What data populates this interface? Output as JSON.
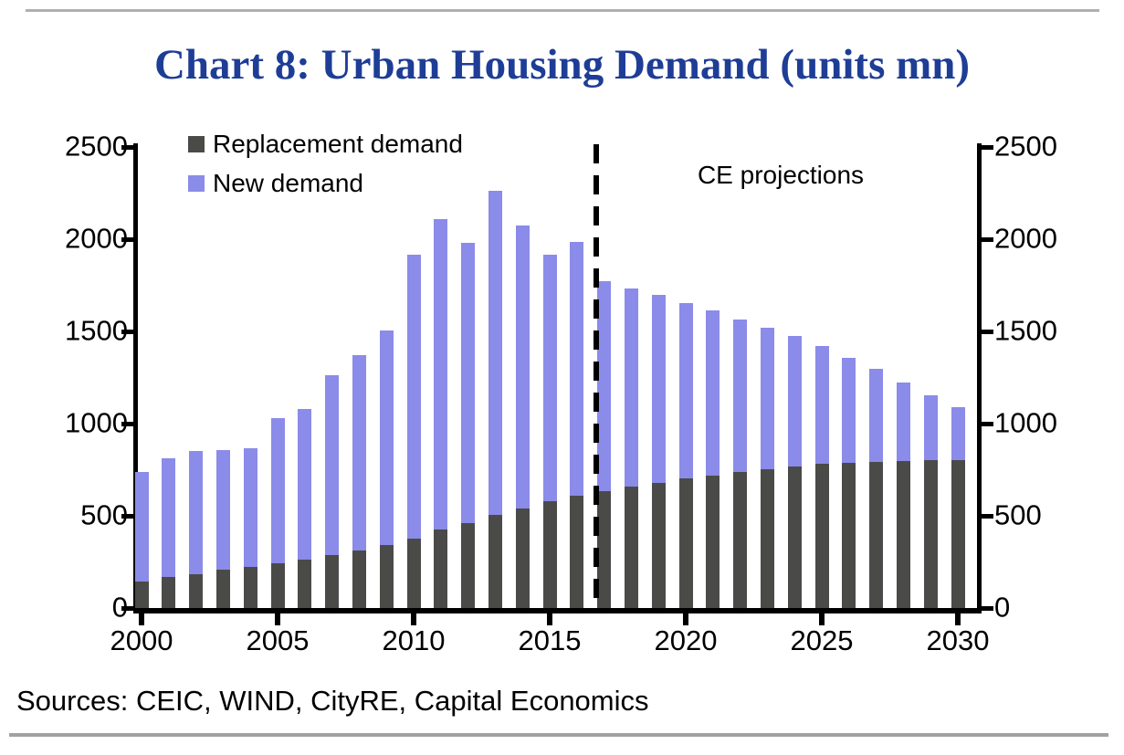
{
  "page": {
    "title": "Chart 8: Urban Housing Demand (units mn)",
    "title_color": "#1e3d96",
    "sources": "Sources: CEIC, WIND, CityRE, Capital Economics",
    "rule_color_top": "#b3afaf",
    "rule_color_bottom": "#a5a1a1"
  },
  "chart_data": {
    "type": "bar",
    "stacked": true,
    "title": "Chart 8: Urban Housing Demand (units mn)",
    "units": "units mn",
    "categories": [
      2000,
      2001,
      2002,
      2003,
      2004,
      2005,
      2006,
      2007,
      2008,
      2009,
      2010,
      2011,
      2012,
      2013,
      2014,
      2015,
      2016,
      2017,
      2018,
      2019,
      2020,
      2021,
      2022,
      2023,
      2024,
      2025,
      2026,
      2027,
      2028,
      2029,
      2030
    ],
    "series": [
      {
        "name": "Replacement demand",
        "color": "#4a4a48",
        "values": [
          145,
          170,
          185,
          210,
          225,
          245,
          260,
          285,
          310,
          340,
          375,
          425,
          460,
          505,
          540,
          580,
          610,
          635,
          660,
          680,
          705,
          720,
          740,
          750,
          765,
          780,
          785,
          790,
          795,
          800,
          800
        ]
      },
      {
        "name": "New demand",
        "color": "#8b8be9",
        "values": [
          595,
          640,
          665,
          645,
          640,
          785,
          820,
          975,
          1060,
          1165,
          1540,
          1685,
          1520,
          1755,
          1535,
          1335,
          1375,
          1135,
          1075,
          1020,
          950,
          895,
          825,
          770,
          710,
          640,
          570,
          505,
          430,
          355,
          290
        ]
      }
    ],
    "stack_totals": [
      740,
      810,
      850,
      855,
      865,
      1030,
      1080,
      1260,
      1370,
      1505,
      1915,
      2110,
      1980,
      2260,
      2075,
      1915,
      1985,
      1770,
      1735,
      1700,
      1655,
      1615,
      1565,
      1520,
      1475,
      1420,
      1355,
      1295,
      1225,
      1155,
      1090
    ],
    "ylim": [
      0,
      2500
    ],
    "y_ticks": [
      0,
      500,
      1000,
      1500,
      2000,
      2500
    ],
    "x_tick_years": [
      2000,
      2005,
      2010,
      2015,
      2020,
      2025,
      2030
    ],
    "dual_y_axis": true,
    "grid": false,
    "legend_position": "top-left",
    "annotation": "CE projections",
    "projection_divider_after": 2016,
    "divider_style": "dashed-vertical-black"
  }
}
